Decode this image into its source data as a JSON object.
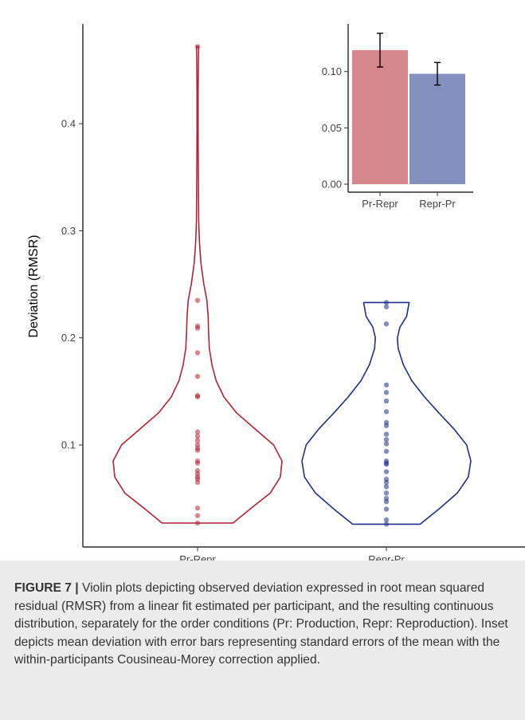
{
  "chart_data": [
    {
      "type": "violin",
      "ylabel": "Deviation (RMSR)",
      "categories": [
        "Pr-Repr",
        "Repr-Pr"
      ],
      "ylim": [
        0.02,
        0.48
      ],
      "yticks": [
        0.1,
        0.2,
        0.3,
        0.4
      ],
      "ytick_labels": [
        "0.1",
        "0.2",
        "0.3",
        "0.4"
      ],
      "colors": {
        "Pr-Repr": "#b22234",
        "Repr-Pr": "#1f2f8a"
      },
      "series": [
        {
          "category": "Pr-Repr",
          "points": [
            0.472,
            0.235,
            0.211,
            0.209,
            0.186,
            0.164,
            0.146,
            0.145,
            0.112,
            0.108,
            0.104,
            0.1,
            0.097,
            0.095,
            0.085,
            0.083,
            0.076,
            0.073,
            0.07,
            0.068,
            0.065,
            0.041,
            0.034,
            0.027
          ],
          "density": [
            [
              0.027,
              0.42
            ],
            [
              0.04,
              0.62
            ],
            [
              0.055,
              0.86
            ],
            [
              0.07,
              0.98
            ],
            [
              0.085,
              1.0
            ],
            [
              0.1,
              0.9
            ],
            [
              0.115,
              0.68
            ],
            [
              0.13,
              0.46
            ],
            [
              0.145,
              0.31
            ],
            [
              0.16,
              0.22
            ],
            [
              0.175,
              0.17
            ],
            [
              0.19,
              0.14
            ],
            [
              0.205,
              0.13
            ],
            [
              0.22,
              0.125
            ],
            [
              0.235,
              0.11
            ],
            [
              0.25,
              0.075
            ],
            [
              0.27,
              0.04
            ],
            [
              0.29,
              0.022
            ],
            [
              0.31,
              0.013
            ],
            [
              0.35,
              0.009
            ],
            [
              0.39,
              0.007
            ],
            [
              0.43,
              0.007
            ],
            [
              0.455,
              0.009
            ],
            [
              0.466,
              0.011
            ],
            [
              0.472,
              0.013
            ]
          ]
        },
        {
          "category": "Repr-Pr",
          "points": [
            0.233,
            0.229,
            0.213,
            0.156,
            0.149,
            0.141,
            0.131,
            0.121,
            0.118,
            0.11,
            0.105,
            0.101,
            0.094,
            0.085,
            0.083,
            0.082,
            0.075,
            0.068,
            0.065,
            0.061,
            0.055,
            0.05,
            0.047,
            0.04,
            0.03,
            0.026
          ],
          "density": [
            [
              0.026,
              0.4
            ],
            [
              0.04,
              0.62
            ],
            [
              0.055,
              0.84
            ],
            [
              0.07,
              0.97
            ],
            [
              0.085,
              1.0
            ],
            [
              0.1,
              0.95
            ],
            [
              0.115,
              0.8
            ],
            [
              0.13,
              0.62
            ],
            [
              0.145,
              0.45
            ],
            [
              0.16,
              0.3
            ],
            [
              0.175,
              0.2
            ],
            [
              0.19,
              0.14
            ],
            [
              0.2,
              0.13
            ],
            [
              0.21,
              0.16
            ],
            [
              0.22,
              0.24
            ],
            [
              0.233,
              0.27
            ]
          ]
        }
      ]
    },
    {
      "type": "bar",
      "inset": true,
      "categories": [
        "Pr-Repr",
        "Repr-Pr"
      ],
      "values": [
        0.119,
        0.098
      ],
      "errors": [
        0.015,
        0.01
      ],
      "ylim": [
        0,
        0.135
      ],
      "yticks": [
        0.0,
        0.05,
        0.1
      ],
      "ytick_labels": [
        "0.00",
        "0.05",
        "0.10"
      ],
      "colors": [
        "#d4888c",
        "#8490bd"
      ]
    }
  ],
  "caption": {
    "label": "FIGURE 7 |",
    "text": " Violin plots depicting observed deviation expressed in root mean squared residual (RMSR) from a linear fit estimated per participant, and the resulting continuous distribution, separately for the order conditions (Pr: Production, Repr: Reproduction). Inset depicts mean deviation with error bars representing standard errors of the mean with the within-participants Cousineau-Morey correction applied."
  }
}
